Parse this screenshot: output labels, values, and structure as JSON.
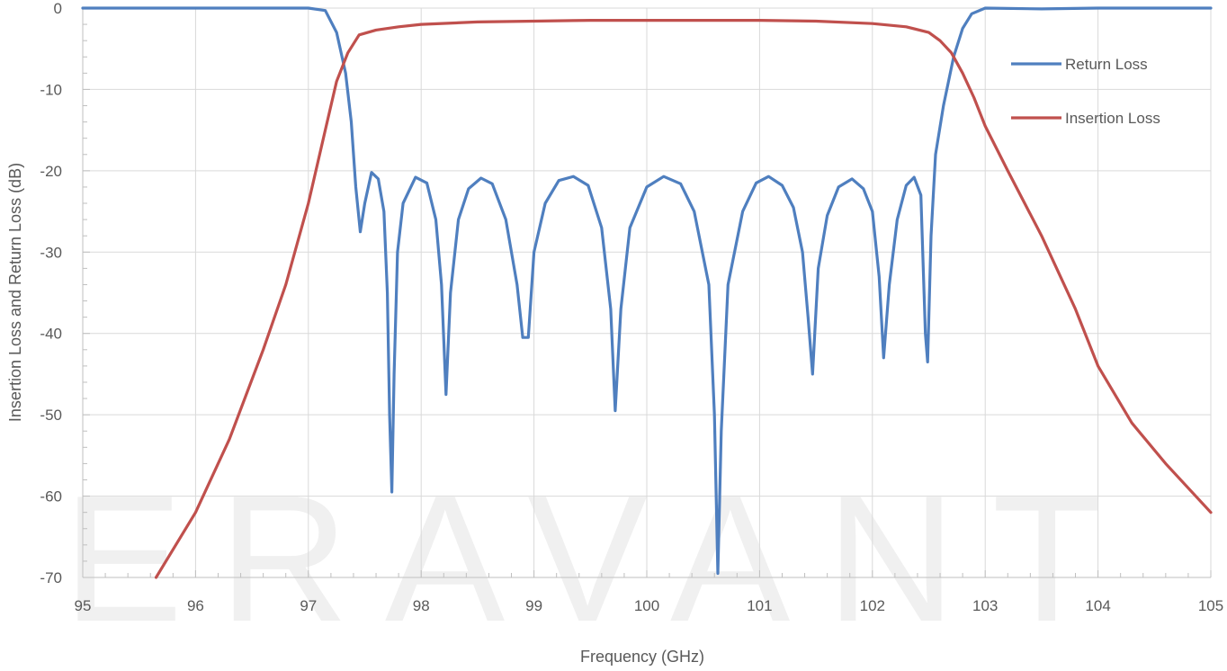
{
  "watermark": "ERAVANT",
  "chart_data": {
    "type": "line",
    "title": "",
    "xlabel": "Frequency (GHz)",
    "ylabel": "Insertion Loss and Return Loss (dB)",
    "xlim": [
      95,
      105
    ],
    "ylim": [
      -70,
      0
    ],
    "x_ticks": [
      "95",
      "96",
      "97",
      "98",
      "99",
      "100",
      "101",
      "102",
      "103",
      "104",
      "105"
    ],
    "y_ticks": [
      "0",
      "-10",
      "-20",
      "-30",
      "-40",
      "-50",
      "-60",
      "-70"
    ],
    "grid": true,
    "legend_position": "top-right",
    "series": [
      {
        "name": "Return Loss",
        "color": "#4f7fbf",
        "points": [
          [
            95.0,
            0.0
          ],
          [
            96.0,
            0.0
          ],
          [
            97.0,
            0.0
          ],
          [
            97.15,
            -0.3
          ],
          [
            97.25,
            -3.0
          ],
          [
            97.33,
            -8.0
          ],
          [
            97.38,
            -14.0
          ],
          [
            97.42,
            -22.0
          ],
          [
            97.46,
            -27.5
          ],
          [
            97.5,
            -24.0
          ],
          [
            97.56,
            -20.2
          ],
          [
            97.62,
            -21.0
          ],
          [
            97.67,
            -25.0
          ],
          [
            97.7,
            -35.0
          ],
          [
            97.72,
            -50.0
          ],
          [
            97.74,
            -59.5
          ],
          [
            97.76,
            -45.0
          ],
          [
            97.79,
            -30.0
          ],
          [
            97.84,
            -24.0
          ],
          [
            97.95,
            -20.8
          ],
          [
            98.05,
            -21.5
          ],
          [
            98.13,
            -26.0
          ],
          [
            98.18,
            -34.0
          ],
          [
            98.22,
            -47.5
          ],
          [
            98.26,
            -35.0
          ],
          [
            98.33,
            -26.0
          ],
          [
            98.42,
            -22.2
          ],
          [
            98.53,
            -20.9
          ],
          [
            98.63,
            -21.6
          ],
          [
            98.75,
            -26.0
          ],
          [
            98.85,
            -34.0
          ],
          [
            98.9,
            -40.5
          ],
          [
            98.95,
            -40.5
          ],
          [
            99.0,
            -30.0
          ],
          [
            99.1,
            -24.0
          ],
          [
            99.22,
            -21.2
          ],
          [
            99.35,
            -20.7
          ],
          [
            99.48,
            -21.8
          ],
          [
            99.6,
            -27.0
          ],
          [
            99.68,
            -37.0
          ],
          [
            99.72,
            -49.5
          ],
          [
            99.77,
            -37.0
          ],
          [
            99.85,
            -27.0
          ],
          [
            100.0,
            -22.0
          ],
          [
            100.15,
            -20.7
          ],
          [
            100.3,
            -21.6
          ],
          [
            100.42,
            -25.0
          ],
          [
            100.55,
            -34.0
          ],
          [
            100.6,
            -50.0
          ],
          [
            100.63,
            -69.5
          ],
          [
            100.66,
            -52.0
          ],
          [
            100.72,
            -34.0
          ],
          [
            100.85,
            -25.0
          ],
          [
            100.97,
            -21.5
          ],
          [
            101.08,
            -20.7
          ],
          [
            101.2,
            -21.8
          ],
          [
            101.3,
            -24.5
          ],
          [
            101.38,
            -30.0
          ],
          [
            101.43,
            -38.0
          ],
          [
            101.47,
            -45.0
          ],
          [
            101.52,
            -32.0
          ],
          [
            101.6,
            -25.5
          ],
          [
            101.7,
            -22.0
          ],
          [
            101.82,
            -21.0
          ],
          [
            101.92,
            -22.2
          ],
          [
            102.0,
            -25.0
          ],
          [
            102.06,
            -33.0
          ],
          [
            102.1,
            -43.0
          ],
          [
            102.15,
            -34.0
          ],
          [
            102.22,
            -26.0
          ],
          [
            102.3,
            -21.8
          ],
          [
            102.37,
            -20.8
          ],
          [
            102.43,
            -23.0
          ],
          [
            102.47,
            -40.0
          ],
          [
            102.49,
            -43.5
          ],
          [
            102.52,
            -28.0
          ],
          [
            102.56,
            -18.0
          ],
          [
            102.63,
            -12.0
          ],
          [
            102.72,
            -6.0
          ],
          [
            102.8,
            -2.5
          ],
          [
            102.88,
            -0.7
          ],
          [
            103.0,
            0.0
          ],
          [
            103.5,
            -0.1
          ],
          [
            104.0,
            0.0
          ],
          [
            105.0,
            0.0
          ]
        ]
      },
      {
        "name": "Insertion Loss",
        "color": "#c0504d",
        "points": [
          [
            95.65,
            -70.0
          ],
          [
            96.0,
            -62.0
          ],
          [
            96.3,
            -53.0
          ],
          [
            96.6,
            -42.0
          ],
          [
            96.8,
            -34.0
          ],
          [
            97.0,
            -24.0
          ],
          [
            97.15,
            -15.0
          ],
          [
            97.25,
            -9.0
          ],
          [
            97.35,
            -5.5
          ],
          [
            97.45,
            -3.3
          ],
          [
            97.6,
            -2.7
          ],
          [
            97.8,
            -2.3
          ],
          [
            98.0,
            -2.0
          ],
          [
            98.5,
            -1.7
          ],
          [
            99.0,
            -1.6
          ],
          [
            99.5,
            -1.5
          ],
          [
            100.0,
            -1.5
          ],
          [
            100.5,
            -1.5
          ],
          [
            101.0,
            -1.5
          ],
          [
            101.5,
            -1.6
          ],
          [
            102.0,
            -1.9
          ],
          [
            102.3,
            -2.3
          ],
          [
            102.5,
            -3.0
          ],
          [
            102.6,
            -4.0
          ],
          [
            102.7,
            -5.5
          ],
          [
            102.8,
            -8.0
          ],
          [
            102.9,
            -11.0
          ],
          [
            103.0,
            -14.5
          ],
          [
            103.2,
            -20.0
          ],
          [
            103.5,
            -28.0
          ],
          [
            103.8,
            -37.0
          ],
          [
            104.0,
            -44.0
          ],
          [
            104.3,
            -51.0
          ],
          [
            104.6,
            -56.0
          ],
          [
            105.0,
            -62.0
          ]
        ]
      }
    ]
  }
}
